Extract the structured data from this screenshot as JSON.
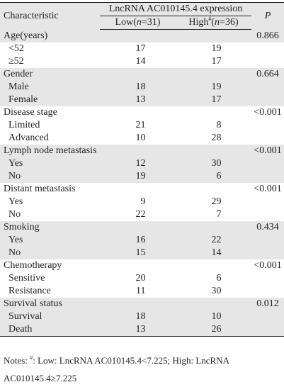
{
  "header": {
    "characteristic": "Characteristic",
    "group": "LncRNA AC010145.4 expression",
    "p": "P",
    "low_prefix": "Low(",
    "low_n": "n",
    "low_suffix": "=31)",
    "high_prefix": "High",
    "high_sup": "#",
    "high_open": "(",
    "high_n": "n",
    "high_suffix": "=36)"
  },
  "rows": [
    {
      "label": "Age(years)",
      "low": "",
      "high": "",
      "p": "0.866",
      "shade": true
    },
    {
      "label": "<52",
      "low": "17",
      "high": "19",
      "p": "",
      "shade": false
    },
    {
      "label": "≥52",
      "low": "14",
      "high": "17",
      "p": "",
      "shade": false
    },
    {
      "label": "Gender",
      "low": "",
      "high": "",
      "p": "0.664",
      "shade": true
    },
    {
      "label": "Male",
      "low": "18",
      "high": "19",
      "p": "",
      "shade": true
    },
    {
      "label": "Female",
      "low": "13",
      "high": "17",
      "p": "",
      "shade": true
    },
    {
      "label": "Disease stage",
      "low": "",
      "high": "",
      "p": "<0.001",
      "shade": false
    },
    {
      "label": "Limited",
      "low": "21",
      "high": "8",
      "p": "",
      "shade": false
    },
    {
      "label": "Advanced",
      "low": "10",
      "high": "28",
      "p": "",
      "shade": false
    },
    {
      "label": "Lymph node metastasis",
      "low": "",
      "high": "",
      "p": "<0.001",
      "shade": true
    },
    {
      "label": "Yes",
      "low": "12",
      "high": "30",
      "p": "",
      "shade": true
    },
    {
      "label": "No",
      "low": "19",
      "high": "6",
      "p": "",
      "shade": true
    },
    {
      "label": "Distant metastasis",
      "low": "",
      "high": "",
      "p": "<0.001",
      "shade": false
    },
    {
      "label": "Yes",
      "low": "9",
      "high": "29",
      "p": "",
      "shade": false
    },
    {
      "label": "No",
      "low": "22",
      "high": "7",
      "p": "",
      "shade": false
    },
    {
      "label": "Smoking",
      "low": "",
      "high": "",
      "p": "0.434",
      "shade": true
    },
    {
      "label": "Yes",
      "low": "16",
      "high": "22",
      "p": "",
      "shade": true
    },
    {
      "label": "No",
      "low": "15",
      "high": "14",
      "p": "",
      "shade": true
    },
    {
      "label": "Chemotherapy",
      "low": "",
      "high": "",
      "p": "<0.001",
      "shade": false
    },
    {
      "label": "Sensitive",
      "low": "20",
      "high": "6",
      "p": "",
      "shade": false
    },
    {
      "label": "Resistance",
      "low": "11",
      "high": "30",
      "p": "",
      "shade": false
    },
    {
      "label": "Survival status",
      "low": "",
      "high": "",
      "p": "0.012",
      "shade": true
    },
    {
      "label": "Survival",
      "low": "18",
      "high": "10",
      "p": "",
      "shade": true
    },
    {
      "label": "Death",
      "low": "13",
      "high": "26",
      "p": "",
      "shade": true
    }
  ],
  "notes": {
    "prefix": "Notes:",
    "sup": "#",
    "line1_a": ": Low: LncRNA AC010145.4<7.225; High: LncRNA",
    "line2": "AC010145.4≥7.225"
  }
}
